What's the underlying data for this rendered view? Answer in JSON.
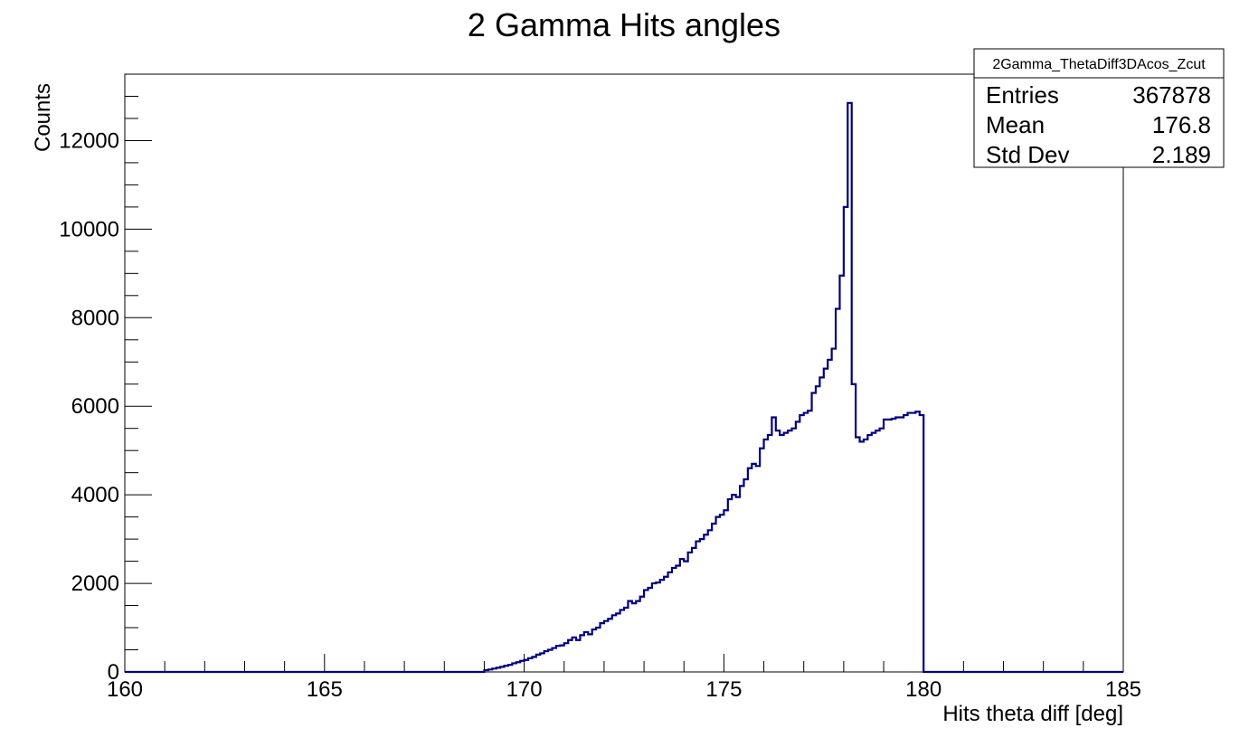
{
  "chart_data": {
    "type": "histogram",
    "title": "2 Gamma Hits angles",
    "xlabel": "Hits theta diff [deg]",
    "ylabel": "Counts",
    "xlim": [
      160,
      185
    ],
    "ylim": [
      0,
      13500
    ],
    "grid": false,
    "bin_width": 0.1,
    "x_ticks": [
      {
        "value": 160,
        "label": "160"
      },
      {
        "value": 165,
        "label": "165"
      },
      {
        "value": 170,
        "label": "170"
      },
      {
        "value": 175,
        "label": "175"
      },
      {
        "value": 180,
        "label": "180"
      },
      {
        "value": 185,
        "label": "185"
      }
    ],
    "y_ticks": [
      {
        "value": 0,
        "label": "0"
      },
      {
        "value": 2000,
        "label": "2000"
      },
      {
        "value": 4000,
        "label": "4000"
      },
      {
        "value": 6000,
        "label": "6000"
      },
      {
        "value": 8000,
        "label": "8000"
      },
      {
        "value": 10000,
        "label": "10000"
      },
      {
        "value": 12000,
        "label": "12000"
      }
    ],
    "color": "#000080",
    "series": [
      {
        "bins": [
          [
            169.0,
            40
          ],
          [
            169.1,
            55
          ],
          [
            169.2,
            75
          ],
          [
            169.3,
            95
          ],
          [
            169.4,
            115
          ],
          [
            169.5,
            140
          ],
          [
            169.6,
            160
          ],
          [
            169.7,
            195
          ],
          [
            169.8,
            220
          ],
          [
            169.9,
            250
          ],
          [
            170.0,
            270
          ],
          [
            170.1,
            310
          ],
          [
            170.2,
            340
          ],
          [
            170.3,
            390
          ],
          [
            170.4,
            420
          ],
          [
            170.5,
            470
          ],
          [
            170.6,
            500
          ],
          [
            170.7,
            540
          ],
          [
            170.8,
            590
          ],
          [
            170.9,
            600
          ],
          [
            171.0,
            650
          ],
          [
            171.1,
            720
          ],
          [
            171.2,
            780
          ],
          [
            171.3,
            720
          ],
          [
            171.4,
            830
          ],
          [
            171.5,
            900
          ],
          [
            171.6,
            850
          ],
          [
            171.7,
            960
          ],
          [
            171.8,
            1000
          ],
          [
            171.9,
            1100
          ],
          [
            172.0,
            1150
          ],
          [
            172.1,
            1200
          ],
          [
            172.2,
            1280
          ],
          [
            172.3,
            1320
          ],
          [
            172.4,
            1400
          ],
          [
            172.5,
            1450
          ],
          [
            172.6,
            1600
          ],
          [
            172.7,
            1550
          ],
          [
            172.8,
            1600
          ],
          [
            172.9,
            1700
          ],
          [
            173.0,
            1850
          ],
          [
            173.1,
            1900
          ],
          [
            173.2,
            2000
          ],
          [
            173.3,
            2020
          ],
          [
            173.4,
            2080
          ],
          [
            173.5,
            2150
          ],
          [
            173.6,
            2250
          ],
          [
            173.7,
            2350
          ],
          [
            173.8,
            2400
          ],
          [
            173.9,
            2550
          ],
          [
            174.0,
            2500
          ],
          [
            174.1,
            2700
          ],
          [
            174.2,
            2800
          ],
          [
            174.3,
            2950
          ],
          [
            174.4,
            3000
          ],
          [
            174.5,
            3100
          ],
          [
            174.6,
            3200
          ],
          [
            174.7,
            3350
          ],
          [
            174.8,
            3500
          ],
          [
            174.9,
            3550
          ],
          [
            175.0,
            3650
          ],
          [
            175.1,
            3900
          ],
          [
            175.2,
            4000
          ],
          [
            175.3,
            3950
          ],
          [
            175.4,
            4200
          ],
          [
            175.5,
            4350
          ],
          [
            175.6,
            4600
          ],
          [
            175.7,
            4700
          ],
          [
            175.8,
            4650
          ],
          [
            175.9,
            5050
          ],
          [
            176.0,
            5250
          ],
          [
            176.1,
            5350
          ],
          [
            176.2,
            5750
          ],
          [
            176.3,
            5450
          ],
          [
            176.4,
            5350
          ],
          [
            176.5,
            5400
          ],
          [
            176.6,
            5450
          ],
          [
            176.7,
            5500
          ],
          [
            176.8,
            5650
          ],
          [
            176.9,
            5800
          ],
          [
            177.0,
            5850
          ],
          [
            177.1,
            5900
          ],
          [
            177.2,
            6300
          ],
          [
            177.3,
            6450
          ],
          [
            177.4,
            6650
          ],
          [
            177.5,
            6850
          ],
          [
            177.6,
            7050
          ],
          [
            177.7,
            7300
          ],
          [
            177.8,
            8200
          ],
          [
            177.9,
            8950
          ],
          [
            178.0,
            10500
          ],
          [
            178.1,
            12850
          ],
          [
            178.2,
            6500
          ],
          [
            178.3,
            5300
          ],
          [
            178.4,
            5200
          ],
          [
            178.5,
            5250
          ],
          [
            178.6,
            5350
          ],
          [
            178.7,
            5400
          ],
          [
            178.8,
            5450
          ],
          [
            178.9,
            5500
          ],
          [
            179.0,
            5700
          ],
          [
            179.1,
            5700
          ],
          [
            179.2,
            5720
          ],
          [
            179.3,
            5750
          ],
          [
            179.4,
            5750
          ],
          [
            179.5,
            5800
          ],
          [
            179.6,
            5850
          ],
          [
            179.7,
            5850
          ],
          [
            179.8,
            5880
          ],
          [
            179.9,
            5800
          ]
        ]
      }
    ]
  },
  "stats_box": {
    "name": "2Gamma_ThetaDiff3DAcos_Zcut",
    "rows": [
      {
        "label": "Entries",
        "value": "367878"
      },
      {
        "label": "Mean",
        "value": "176.8"
      },
      {
        "label": "Std Dev",
        "value": "2.189"
      }
    ]
  }
}
